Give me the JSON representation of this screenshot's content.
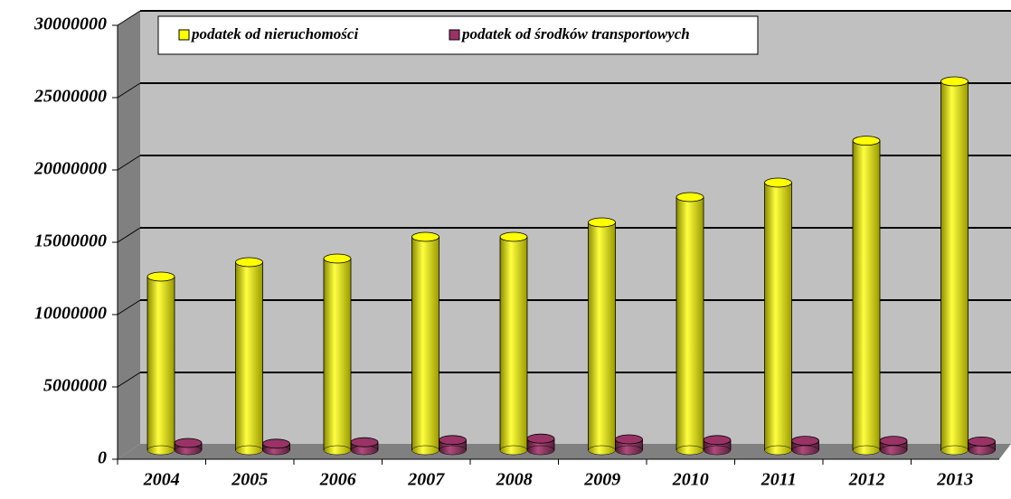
{
  "chart_data": {
    "type": "bar",
    "categories": [
      "2004",
      "2005",
      "2006",
      "2007",
      "2008",
      "2009",
      "2010",
      "2011",
      "2012",
      "2013"
    ],
    "series": [
      {
        "name": "podatek od nieruchomości",
        "color": "#ffff00",
        "values": [
          12000000,
          13000000,
          13250000,
          14750000,
          14750000,
          15750000,
          17500000,
          18500000,
          21400000,
          25500000
        ]
      },
      {
        "name": "podatek od środków transportowych",
        "color": "#993366",
        "values": [
          500000,
          450000,
          550000,
          700000,
          800000,
          750000,
          700000,
          650000,
          650000,
          600000
        ]
      }
    ],
    "ylim": [
      0,
      30000000
    ],
    "yticks": [
      0,
      5000000,
      10000000,
      15000000,
      20000000,
      25000000,
      30000000
    ],
    "grid": true,
    "legend": "top"
  }
}
